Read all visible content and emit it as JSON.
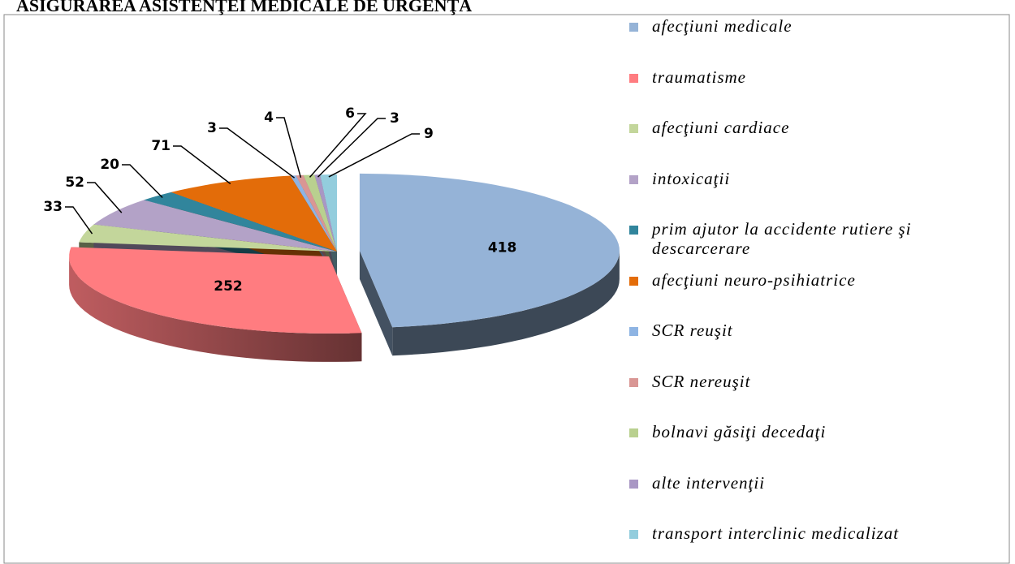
{
  "chart_data": {
    "type": "pie3d",
    "title": "ASIGURAREA ASISTENŢEI MEDICALE DE URGENŢĂ",
    "categories": [
      "afecţiuni medicale",
      "traumatisme",
      "afecţiuni cardiace",
      "intoxicaţii",
      "prim ajutor la accidente rutiere şi descarcerare",
      "afecţiuni neuro-psihiatrice",
      "SCR reuşit",
      "SCR nereuşit",
      "bolnavi găsiţi decedaţi",
      "alte intervenţii",
      "transport interclinic medicalizat"
    ],
    "values": [
      418,
      252,
      33,
      52,
      20,
      71,
      3,
      4,
      6,
      3,
      9
    ],
    "colors": [
      "#95b3d7",
      "#ff7c80",
      "#c3d69b",
      "#b3a2c7",
      "#31859c",
      "#e36c09",
      "#8eb4e3",
      "#d99694",
      "#b9d08f",
      "#a997c4",
      "#93cddd"
    ],
    "legend": "right"
  }
}
